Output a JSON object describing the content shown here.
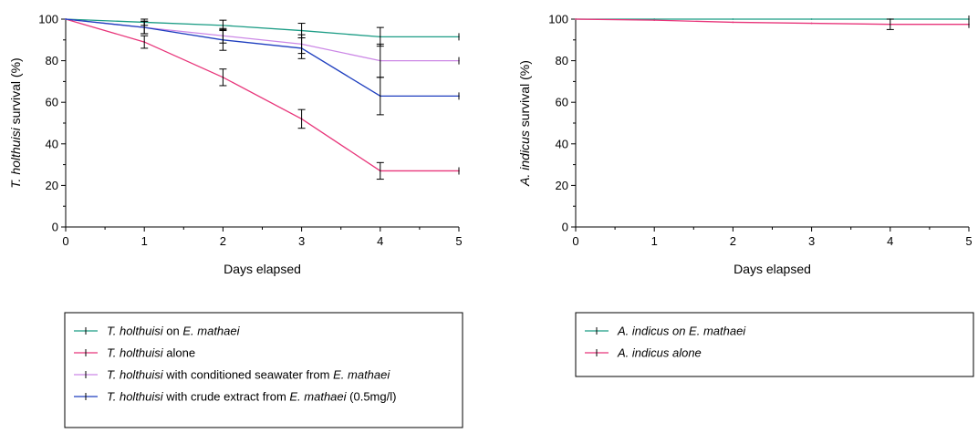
{
  "chart_data": [
    {
      "type": "line",
      "xlabel": "Days elapsed",
      "ylabel_italic": "T. holthuisi",
      "ylabel_rest": " survival (%)",
      "xlim": [
        0,
        5
      ],
      "ylim": [
        0,
        100
      ],
      "xticks": [
        0,
        1,
        2,
        3,
        4,
        5
      ],
      "yticks": [
        0,
        20,
        40,
        60,
        80,
        100
      ],
      "grid": false,
      "legend_placement": "bottom",
      "x": [
        0,
        1,
        2,
        3,
        4,
        5
      ],
      "series": [
        {
          "color": "#1b9c85",
          "values": [
            100,
            98.5,
            97,
            94.5,
            91.5,
            91.5
          ],
          "errors": [
            0,
            1.5,
            2.5,
            3.5,
            4.5,
            0
          ],
          "legend": [
            {
              "text": "T. holthuisi",
              "italic": true
            },
            {
              "text": " on ",
              "italic": false
            },
            {
              "text": "E. mathaei",
              "italic": true
            }
          ]
        },
        {
          "color": "#e8357a",
          "values": [
            100,
            89,
            72,
            52,
            27,
            27
          ],
          "errors": [
            0,
            3,
            4,
            4.5,
            4,
            0
          ],
          "legend": [
            {
              "text": "T. holthuisi",
              "italic": true
            },
            {
              "text": " alone",
              "italic": false
            }
          ]
        },
        {
          "color": "#cc88e6",
          "values": [
            100,
            96,
            92,
            88,
            80,
            80
          ],
          "errors": [
            0,
            3,
            3.5,
            4.5,
            8,
            0
          ],
          "legend": [
            {
              "text": "T. holthuisi",
              "italic": true
            },
            {
              "text": " with conditioned seawater from ",
              "italic": false
            },
            {
              "text": "E. mathaei",
              "italic": true
            }
          ]
        },
        {
          "color": "#1f3fbf",
          "values": [
            100,
            96,
            90,
            86,
            63,
            63
          ],
          "errors": [
            0,
            3,
            5,
            5,
            9,
            0
          ],
          "legend": [
            {
              "text": "T. holthuisi",
              "italic": true
            },
            {
              "text": " with crude extract from ",
              "italic": false
            },
            {
              "text": "E. mathaei",
              "italic": true
            },
            {
              "text": " (0.5mg/l)",
              "italic": false
            }
          ]
        }
      ]
    },
    {
      "type": "line",
      "xlabel": "Days elapsed",
      "ylabel_italic": "A. indicus",
      "ylabel_rest": " survival (%)",
      "xlim": [
        0,
        5
      ],
      "ylim": [
        0,
        100
      ],
      "xticks": [
        0,
        1,
        2,
        3,
        4,
        5
      ],
      "yticks": [
        0,
        20,
        40,
        60,
        80,
        100
      ],
      "grid": false,
      "legend_placement": "bottom",
      "x": [
        0,
        1,
        2,
        3,
        4,
        5
      ],
      "series": [
        {
          "color": "#1b9c85",
          "values": [
            100,
            100,
            100,
            100,
            100,
            100
          ],
          "errors": [
            0,
            0,
            0,
            0,
            0,
            0
          ],
          "legend": [
            {
              "text": "A. indicus on E. mathaei",
              "italic": true
            }
          ]
        },
        {
          "color": "#e8357a",
          "values": [
            100,
            99.5,
            98.5,
            98,
            97.5,
            97.5
          ],
          "errors": [
            0,
            0,
            0,
            0,
            2.5,
            0
          ],
          "legend": [
            {
              "text": "A. indicus alone",
              "italic": true
            }
          ]
        }
      ]
    }
  ]
}
